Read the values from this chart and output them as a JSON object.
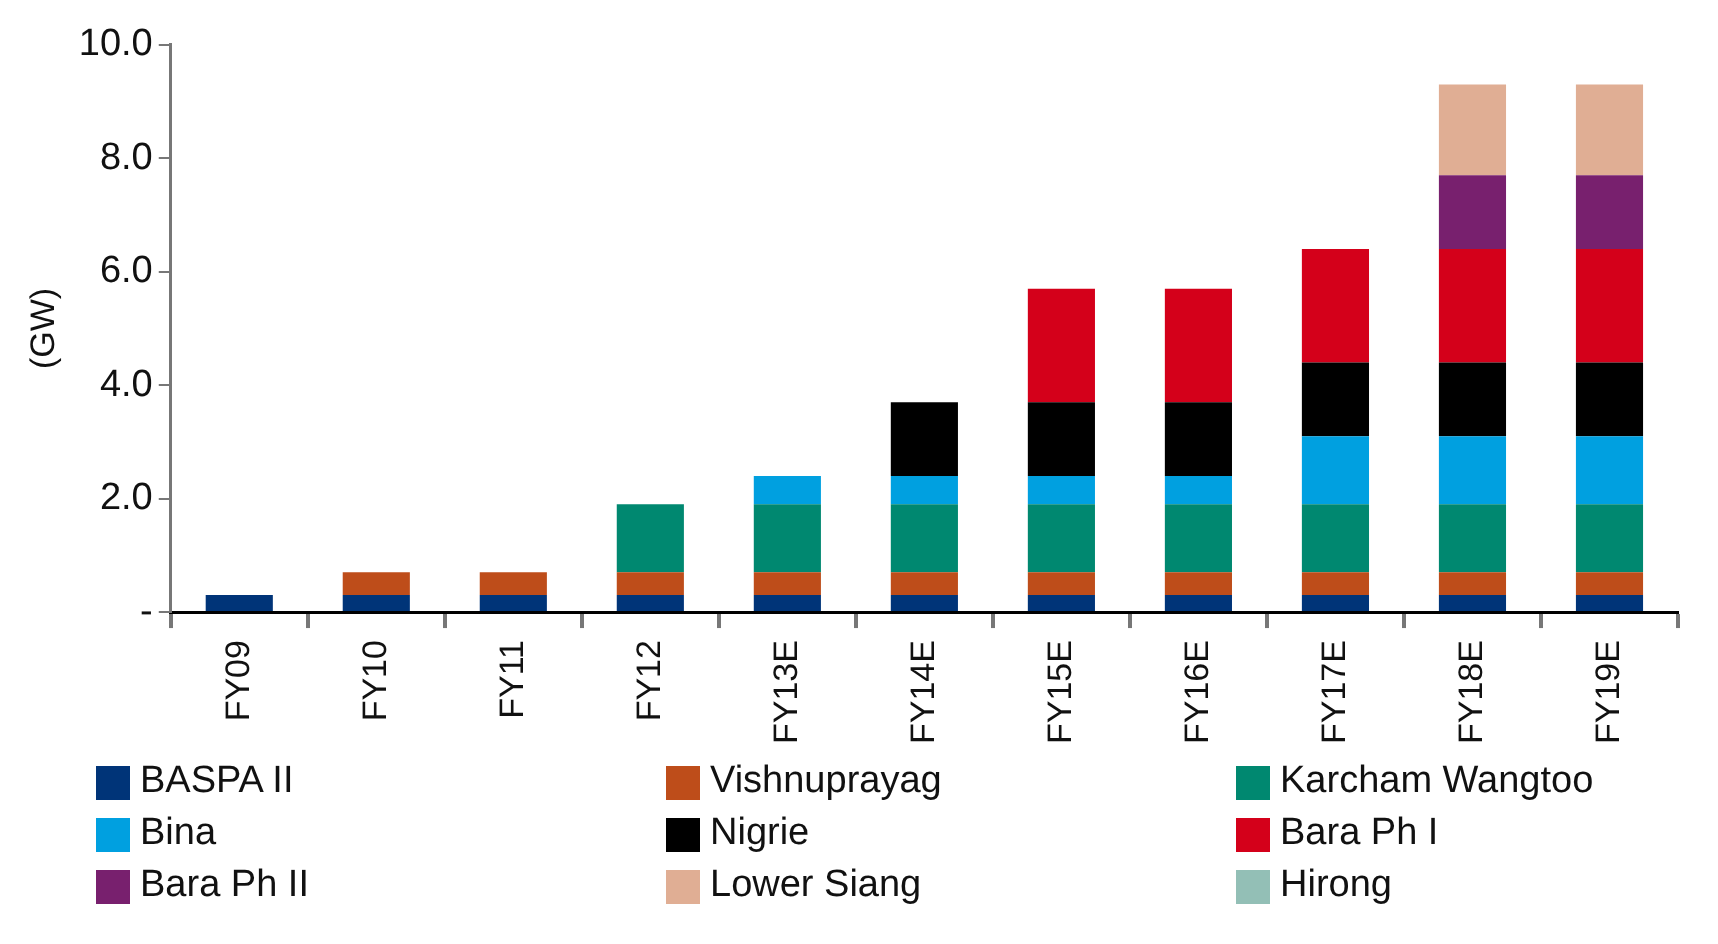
{
  "chart_data": {
    "type": "bar",
    "ylabel": "(GW)",
    "stacked": true,
    "legend": "bottom",
    "grid": false,
    "categories": [
      "FY09",
      "FY10",
      "FY11",
      "FY12",
      "FY13E",
      "FY14E",
      "FY15E",
      "FY16E",
      "FY17E",
      "FY18E",
      "FY19E"
    ],
    "ylim": [
      0,
      10
    ],
    "yticks": [
      {
        "value": 0,
        "label": "-"
      },
      {
        "value": 2,
        "label": "2.0"
      },
      {
        "value": 4,
        "label": "4.0"
      },
      {
        "value": 6,
        "label": "6.0"
      },
      {
        "value": 8,
        "label": "8.0"
      },
      {
        "value": 10,
        "label": "10.0"
      }
    ],
    "series": [
      {
        "name": "BASPA II",
        "color": "#003478",
        "values": [
          0.3,
          0.3,
          0.3,
          0.3,
          0.3,
          0.3,
          0.3,
          0.3,
          0.3,
          0.3,
          0.3
        ]
      },
      {
        "name": "Vishnuprayag",
        "color": "#be4d1a",
        "values": [
          null,
          0.4,
          0.4,
          0.4,
          0.4,
          0.4,
          0.4,
          0.4,
          0.4,
          0.4,
          0.4
        ]
      },
      {
        "name": "Karcham Wangtoo",
        "color": "#008870",
        "values": [
          null,
          null,
          null,
          1.2,
          1.2,
          1.2,
          1.2,
          1.2,
          1.2,
          1.2,
          1.2
        ]
      },
      {
        "name": "Bina",
        "color": "#00a0e0",
        "values": [
          null,
          null,
          null,
          null,
          0.5,
          0.5,
          0.5,
          0.5,
          1.2,
          1.2,
          1.2
        ]
      },
      {
        "name": "Nigrie",
        "color": "#000000",
        "values": [
          null,
          null,
          null,
          null,
          null,
          1.3,
          1.3,
          1.3,
          1.3,
          1.3,
          1.3
        ]
      },
      {
        "name": "Bara Ph I",
        "color": "#d4001a",
        "values": [
          null,
          null,
          null,
          null,
          null,
          null,
          2.0,
          2.0,
          2.0,
          2.0,
          2.0
        ]
      },
      {
        "name": "Bara Ph II",
        "color": "#78206e",
        "values": [
          null,
          null,
          null,
          null,
          null,
          null,
          null,
          null,
          null,
          1.3,
          1.3
        ]
      },
      {
        "name": "Lower Siang",
        "color": "#e0ae94",
        "values": [
          null,
          null,
          null,
          null,
          null,
          null,
          null,
          null,
          null,
          1.6,
          1.6
        ]
      },
      {
        "name": "Hirong",
        "color": "#93bfb6",
        "values": [
          null,
          null,
          null,
          null,
          null,
          null,
          null,
          null,
          null,
          null,
          null
        ]
      }
    ]
  }
}
